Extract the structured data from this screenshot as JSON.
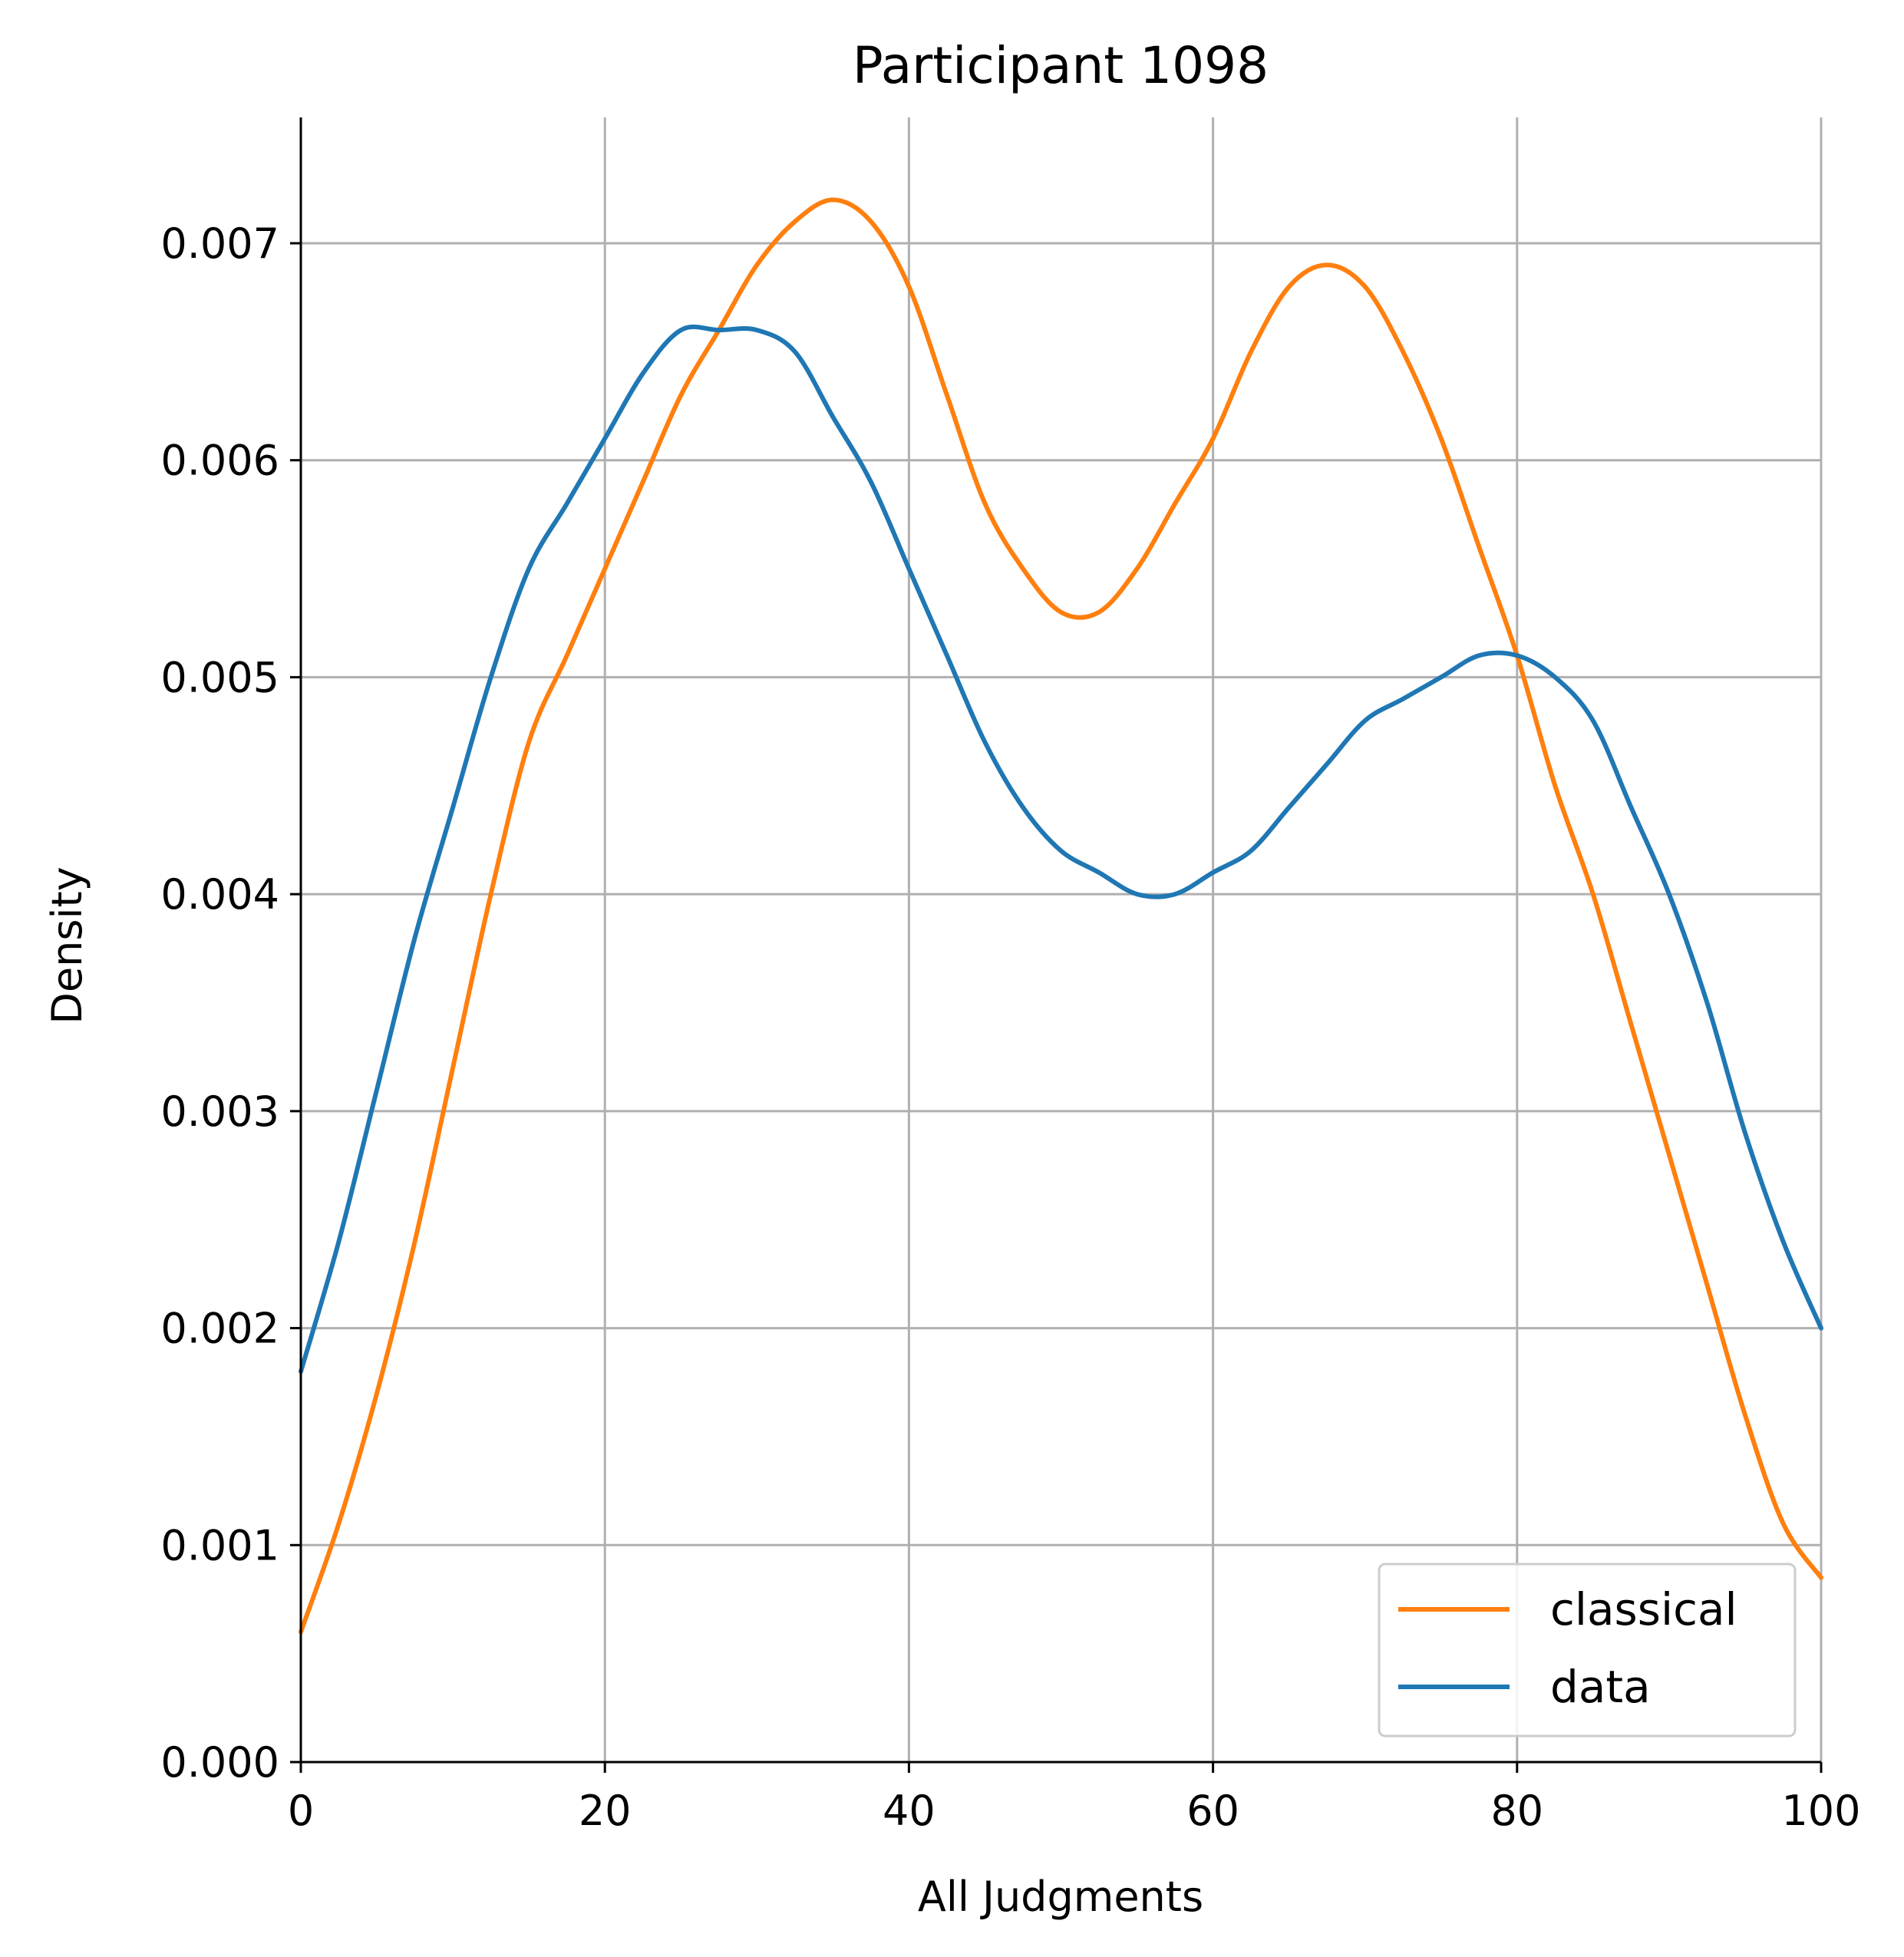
{
  "chart_data": {
    "type": "line",
    "title": "Participant 1098",
    "xlabel": "All Judgments",
    "ylabel": "Density",
    "xlim": [
      0,
      100
    ],
    "ylim": [
      0,
      0.00758
    ],
    "xticks": [
      0,
      20,
      40,
      60,
      80,
      100
    ],
    "xtick_labels": [
      "0",
      "20",
      "40",
      "60",
      "80",
      "100"
    ],
    "yticks": [
      0,
      0.001,
      0.002,
      0.003,
      0.004,
      0.005,
      0.006,
      0.007
    ],
    "ytick_labels": [
      "0.000",
      "0.001",
      "0.002",
      "0.003",
      "0.004",
      "0.005",
      "0.006",
      "0.007"
    ],
    "grid": true,
    "legend_position": "lower right",
    "series": [
      {
        "name": "classical",
        "color": "#ff7f0e",
        "x": [
          0,
          2.5,
          5,
          7.5,
          10,
          12.5,
          15,
          17.5,
          20,
          22.5,
          25,
          27.5,
          30,
          32.5,
          35,
          37.5,
          40,
          42.5,
          45,
          47.5,
          50,
          52.5,
          55,
          57.5,
          60,
          62.5,
          65,
          67.5,
          70,
          72.5,
          75,
          77.5,
          80,
          82.5,
          85,
          87.5,
          90,
          92.5,
          95,
          97.5,
          100
        ],
        "y": [
          0.0006,
          0.0011,
          0.0017,
          0.0024,
          0.0032,
          0.004,
          0.0047,
          0.0051,
          0.0055,
          0.0059,
          0.0063,
          0.0066,
          0.0069,
          0.0071,
          0.0072,
          0.0071,
          0.0068,
          0.0063,
          0.0058,
          0.0055,
          0.0053,
          0.0053,
          0.0055,
          0.0058,
          0.0061,
          0.0065,
          0.0068,
          0.0069,
          0.0068,
          0.0065,
          0.0061,
          0.0056,
          0.0051,
          0.0045,
          0.004,
          0.0034,
          0.0028,
          0.0022,
          0.0016,
          0.0011,
          0.00085
        ]
      },
      {
        "name": "data",
        "color": "#1f77b4",
        "x": [
          0,
          2.5,
          5,
          7.5,
          10,
          12.5,
          15,
          17.5,
          20,
          22.5,
          25,
          27.5,
          30,
          32.5,
          35,
          37.5,
          40,
          42.5,
          45,
          47.5,
          50,
          52.5,
          55,
          57.5,
          60,
          62.5,
          65,
          67.5,
          70,
          72.5,
          75,
          77.5,
          80,
          82.5,
          85,
          87.5,
          90,
          92.5,
          95,
          97.5,
          100
        ],
        "y": [
          0.0018,
          0.0024,
          0.0031,
          0.0038,
          0.0044,
          0.005,
          0.0055,
          0.0058,
          0.0061,
          0.0064,
          0.0066,
          0.0066,
          0.0066,
          0.0065,
          0.0062,
          0.0059,
          0.0055,
          0.0051,
          0.0047,
          0.0044,
          0.0042,
          0.0041,
          0.004,
          0.004,
          0.0041,
          0.0042,
          0.0044,
          0.0046,
          0.0048,
          0.0049,
          0.005,
          0.0051,
          0.0051,
          0.005,
          0.0048,
          0.0044,
          0.004,
          0.0035,
          0.0029,
          0.0024,
          0.002
        ]
      }
    ]
  }
}
